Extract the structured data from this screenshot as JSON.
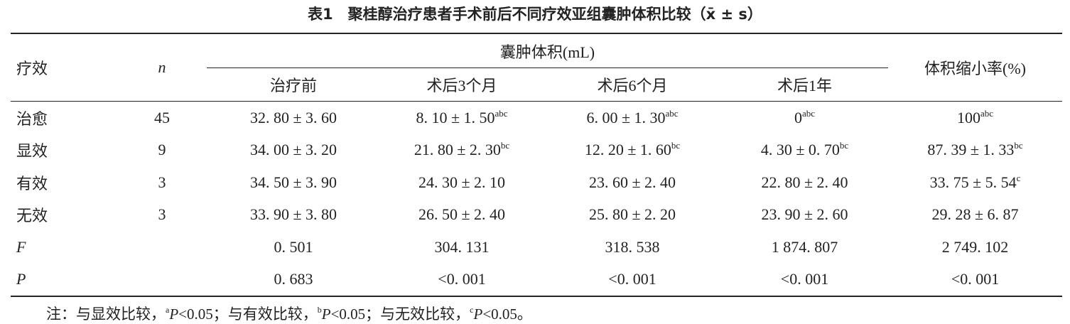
{
  "title": "表1　聚桂醇治疗患者手术前后不同疗效亚组囊肿体积比较（x̄ ± s）",
  "table": {
    "header": {
      "effect": "疗效",
      "n": "n",
      "group": "囊肿体积(mL)",
      "sub": [
        "治疗前",
        "术后3个月",
        "术后6个月",
        "术后1年"
      ],
      "rate": "体积缩小率(%)"
    },
    "rows": [
      [
        "治愈",
        "45",
        "32. 80 ± 3. 60",
        {
          "text": "8. 10 ± 1. 50",
          "sup": "abc"
        },
        {
          "text": "6. 00 ± 1. 30",
          "sup": "abc"
        },
        {
          "text": "0",
          "sup": "abc"
        },
        {
          "text": "100",
          "sup": "abc"
        }
      ],
      [
        "显效",
        "9",
        "34. 00 ± 3. 20",
        {
          "text": "21. 80 ± 2. 30",
          "sup": "bc"
        },
        {
          "text": "12. 20 ± 1. 60",
          "sup": "bc"
        },
        {
          "text": "4. 30 ± 0. 70",
          "sup": "bc"
        },
        {
          "text": "87. 39 ± 1. 33",
          "sup": "bc"
        }
      ],
      [
        "有效",
        "3",
        "34. 50 ± 3. 90",
        "24. 30 ± 2. 10",
        "23. 60 ± 2. 40",
        "22. 80 ± 2. 40",
        {
          "text": "33. 75 ± 5. 54",
          "sup": "c"
        }
      ],
      [
        "无效",
        "3",
        "33. 90 ± 3. 80",
        "26. 50 ± 2. 40",
        "25. 80 ± 2. 20",
        "23. 90 ± 2. 60",
        "29. 28 ± 6. 87"
      ],
      [
        "F",
        null,
        "0. 501",
        "304. 131",
        "318. 538",
        "1 874. 807",
        "2 749. 102"
      ],
      [
        "P",
        null,
        "0. 683",
        "<0. 001",
        "<0. 001",
        "<0. 001",
        "<0. 001"
      ]
    ]
  },
  "note": [
    "注：与显效比较，",
    "a",
    "P",
    "<0.05；与有效比较，",
    "b",
    "P",
    "<0.05；与无效比较，",
    "c",
    "P",
    "<0.05。"
  ]
}
